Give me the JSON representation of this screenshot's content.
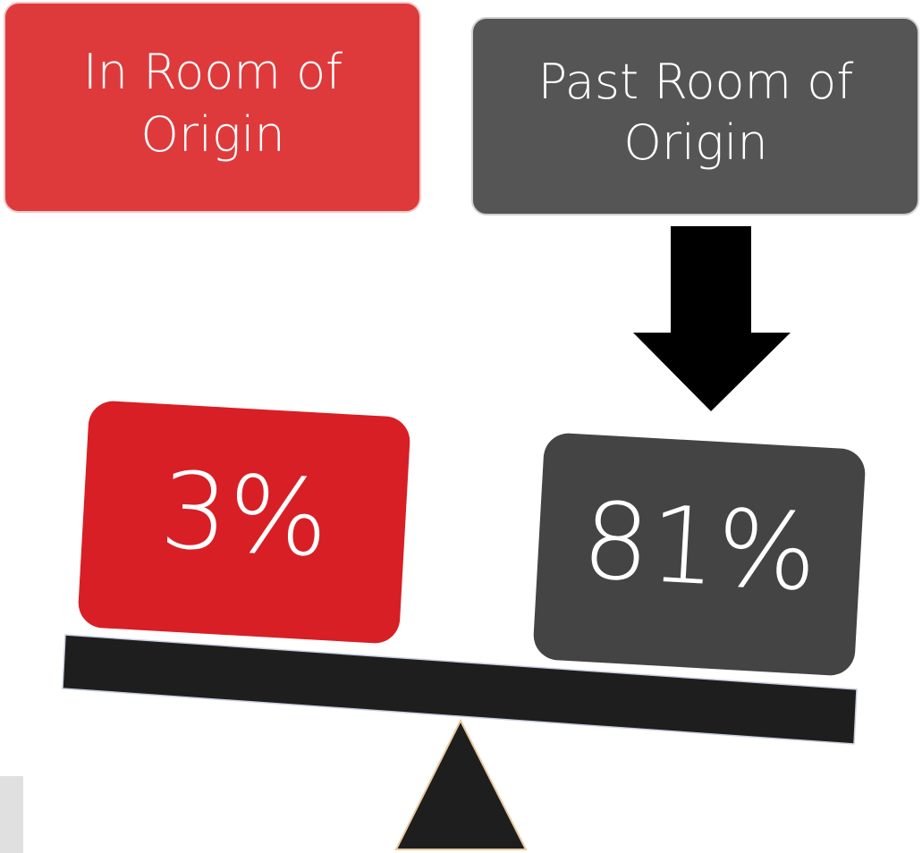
{
  "left": {
    "label_lines": [
      "In Room of",
      "Origin"
    ],
    "value": "3%"
  },
  "right": {
    "label_lines": [
      "Past Room of",
      "Origin"
    ],
    "value": "81%"
  }
}
